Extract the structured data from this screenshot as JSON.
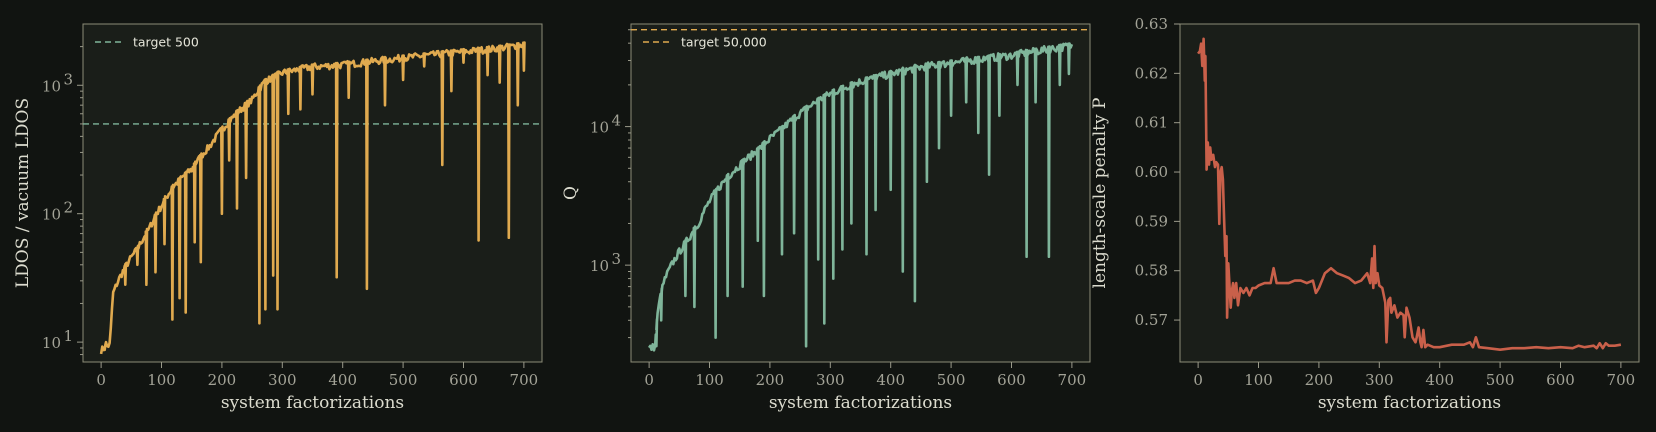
{
  "chart_data": [
    {
      "type": "line",
      "xlabel": "system factorizations",
      "ylabel": "LDOS / vacuum LDOS",
      "yscale": "log",
      "xlim": [
        -30,
        730
      ],
      "ylim": [
        7,
        3000
      ],
      "x_ticks": [
        "0",
        "100",
        "200",
        "300",
        "400",
        "500",
        "600",
        "700"
      ],
      "y_ticks": [
        {
          "base": "10",
          "exp": "1",
          "value": 10
        },
        {
          "base": "10",
          "exp": "2",
          "value": 100
        },
        {
          "base": "10",
          "exp": "3",
          "value": 1000
        }
      ],
      "color": "#e0aa4f",
      "legend": {
        "label": "target 500",
        "position": "upper-left"
      },
      "target": {
        "value": 500,
        "color": "#7fb59a"
      },
      "envelope": [
        [
          0,
          9
        ],
        [
          15,
          10
        ],
        [
          20,
          25
        ],
        [
          40,
          40
        ],
        [
          60,
          55
        ],
        [
          80,
          80
        ],
        [
          100,
          120
        ],
        [
          120,
          170
        ],
        [
          150,
          230
        ],
        [
          180,
          350
        ],
        [
          200,
          470
        ],
        [
          220,
          600
        ],
        [
          250,
          800
        ],
        [
          270,
          1100
        ],
        [
          300,
          1300
        ],
        [
          350,
          1450
        ],
        [
          400,
          1500
        ],
        [
          450,
          1600
        ],
        [
          500,
          1700
        ],
        [
          550,
          1800
        ],
        [
          600,
          1900
        ],
        [
          650,
          2000
        ],
        [
          700,
          2150
        ]
      ],
      "dips": [
        [
          8,
          10
        ],
        [
          40,
          28
        ],
        [
          60,
          40
        ],
        [
          75,
          28
        ],
        [
          90,
          35
        ],
        [
          105,
          58
        ],
        [
          118,
          15
        ],
        [
          130,
          22
        ],
        [
          140,
          17
        ],
        [
          155,
          60
        ],
        [
          165,
          42
        ],
        [
          200,
          100
        ],
        [
          212,
          260
        ],
        [
          225,
          110
        ],
        [
          240,
          190
        ],
        [
          262,
          14
        ],
        [
          272,
          18
        ],
        [
          285,
          33
        ],
        [
          292,
          18
        ],
        [
          310,
          600
        ],
        [
          330,
          650
        ],
        [
          350,
          850
        ],
        [
          390,
          32
        ],
        [
          410,
          800
        ],
        [
          440,
          26
        ],
        [
          470,
          700
        ],
        [
          500,
          1100
        ],
        [
          535,
          1400
        ],
        [
          565,
          240
        ],
        [
          580,
          900
        ],
        [
          600,
          1500
        ],
        [
          625,
          62
        ],
        [
          640,
          1200
        ],
        [
          660,
          1050
        ],
        [
          675,
          65
        ],
        [
          690,
          700
        ],
        [
          700,
          1300
        ]
      ]
    },
    {
      "type": "line",
      "xlabel": "system factorizations",
      "ylabel": "Q",
      "yscale": "log",
      "xlim": [
        -30,
        730
      ],
      "ylim": [
        200,
        55000
      ],
      "x_ticks": [
        "0",
        "100",
        "200",
        "300",
        "400",
        "500",
        "600",
        "700"
      ],
      "y_ticks": [
        {
          "base": "10",
          "exp": "3",
          "value": 1000
        },
        {
          "base": "10",
          "exp": "4",
          "value": 10000
        }
      ],
      "color": "#7fb59a",
      "legend": {
        "label": "target 50,000",
        "position": "upper-left"
      },
      "target": {
        "value": 50000,
        "color": "#e0aa4f"
      },
      "envelope": [
        [
          0,
          260
        ],
        [
          10,
          270
        ],
        [
          15,
          500
        ],
        [
          25,
          800
        ],
        [
          40,
          1100
        ],
        [
          60,
          1500
        ],
        [
          80,
          2000
        ],
        [
          100,
          3000
        ],
        [
          120,
          4000
        ],
        [
          150,
          5500
        ],
        [
          180,
          7000
        ],
        [
          200,
          8500
        ],
        [
          220,
          10000
        ],
        [
          250,
          13000
        ],
        [
          300,
          18000
        ],
        [
          350,
          22000
        ],
        [
          400,
          25000
        ],
        [
          450,
          28000
        ],
        [
          500,
          30000
        ],
        [
          550,
          32000
        ],
        [
          600,
          34000
        ],
        [
          650,
          37000
        ],
        [
          700,
          40000
        ]
      ],
      "dips": [
        [
          12,
          260
        ],
        [
          20,
          400
        ],
        [
          60,
          600
        ],
        [
          75,
          500
        ],
        [
          110,
          300
        ],
        [
          130,
          600
        ],
        [
          155,
          700
        ],
        [
          180,
          1500
        ],
        [
          190,
          600
        ],
        [
          220,
          1200
        ],
        [
          240,
          1700
        ],
        [
          260,
          260
        ],
        [
          280,
          1100
        ],
        [
          290,
          380
        ],
        [
          305,
          800
        ],
        [
          320,
          1300
        ],
        [
          335,
          2000
        ],
        [
          360,
          1200
        ],
        [
          375,
          2500
        ],
        [
          400,
          3500
        ],
        [
          420,
          900
        ],
        [
          440,
          550
        ],
        [
          460,
          4000
        ],
        [
          480,
          7000
        ],
        [
          500,
          12000
        ],
        [
          525,
          15000
        ],
        [
          545,
          9000
        ],
        [
          563,
          4500
        ],
        [
          580,
          12000
        ],
        [
          610,
          20000
        ],
        [
          625,
          1150
        ],
        [
          640,
          15000
        ],
        [
          662,
          1150
        ],
        [
          680,
          20000
        ],
        [
          695,
          24000
        ]
      ]
    },
    {
      "type": "line",
      "xlabel": "system factorizations",
      "ylabel": "length-scale penalty P",
      "yscale": "linear",
      "xlim": [
        -30,
        730
      ],
      "ylim": [
        0.5615,
        0.63
      ],
      "x_ticks": [
        "0",
        "100",
        "200",
        "300",
        "400",
        "500",
        "600",
        "700"
      ],
      "y_ticks": [
        {
          "label": "0.57",
          "value": 0.57
        },
        {
          "label": "0.58",
          "value": 0.58
        },
        {
          "label": "0.59",
          "value": 0.59
        },
        {
          "label": "0.60",
          "value": 0.6
        },
        {
          "label": "0.61",
          "value": 0.61
        },
        {
          "label": "0.62",
          "value": 0.62
        },
        {
          "label": "0.63",
          "value": 0.63
        }
      ],
      "color": "#c9604a",
      "points": [
        [
          0,
          0.624
        ],
        [
          3,
          0.6245
        ],
        [
          5,
          0.626
        ],
        [
          7,
          0.6215
        ],
        [
          9,
          0.627
        ],
        [
          11,
          0.6185
        ],
        [
          12,
          0.6235
        ],
        [
          14,
          0.6005
        ],
        [
          16,
          0.606
        ],
        [
          18,
          0.6015
        ],
        [
          20,
          0.605
        ],
        [
          22,
          0.6025
        ],
        [
          25,
          0.6035
        ],
        [
          28,
          0.601
        ],
        [
          30,
          0.602
        ],
        [
          33,
          0.6015
        ],
        [
          35,
          0.5895
        ],
        [
          37,
          0.6
        ],
        [
          39,
          0.601
        ],
        [
          41,
          0.5985
        ],
        [
          43,
          0.5905
        ],
        [
          45,
          0.583
        ],
        [
          47,
          0.587
        ],
        [
          48,
          0.5705
        ],
        [
          50,
          0.5815
        ],
        [
          52,
          0.577
        ],
        [
          54,
          0.5725
        ],
        [
          56,
          0.576
        ],
        [
          58,
          0.5775
        ],
        [
          60,
          0.5745
        ],
        [
          63,
          0.5775
        ],
        [
          66,
          0.573
        ],
        [
          70,
          0.5765
        ],
        [
          75,
          0.5755
        ],
        [
          80,
          0.5765
        ],
        [
          85,
          0.575
        ],
        [
          90,
          0.5765
        ],
        [
          95,
          0.5765
        ],
        [
          100,
          0.577
        ],
        [
          110,
          0.5775
        ],
        [
          120,
          0.5775
        ],
        [
          125,
          0.5805
        ],
        [
          130,
          0.5775
        ],
        [
          140,
          0.5775
        ],
        [
          150,
          0.5775
        ],
        [
          160,
          0.578
        ],
        [
          170,
          0.578
        ],
        [
          180,
          0.5775
        ],
        [
          190,
          0.578
        ],
        [
          195,
          0.5755
        ],
        [
          200,
          0.5765
        ],
        [
          210,
          0.5795
        ],
        [
          220,
          0.5805
        ],
        [
          230,
          0.5795
        ],
        [
          240,
          0.579
        ],
        [
          250,
          0.5785
        ],
        [
          260,
          0.5775
        ],
        [
          270,
          0.578
        ],
        [
          280,
          0.5795
        ],
        [
          285,
          0.5775
        ],
        [
          288,
          0.5825
        ],
        [
          290,
          0.5765
        ],
        [
          292,
          0.585
        ],
        [
          294,
          0.5775
        ],
        [
          297,
          0.5795
        ],
        [
          300,
          0.577
        ],
        [
          305,
          0.5765
        ],
        [
          310,
          0.5735
        ],
        [
          312,
          0.5655
        ],
        [
          315,
          0.574
        ],
        [
          318,
          0.5745
        ],
        [
          320,
          0.5715
        ],
        [
          325,
          0.573
        ],
        [
          330,
          0.5705
        ],
        [
          335,
          0.5715
        ],
        [
          340,
          0.571
        ],
        [
          342,
          0.5665
        ],
        [
          345,
          0.5725
        ],
        [
          350,
          0.5705
        ],
        [
          355,
          0.5665
        ],
        [
          360,
          0.5655
        ],
        [
          362,
          0.5665
        ],
        [
          365,
          0.5685
        ],
        [
          368,
          0.5655
        ],
        [
          370,
          0.5645
        ],
        [
          373,
          0.568
        ],
        [
          376,
          0.5645
        ],
        [
          380,
          0.565
        ],
        [
          390,
          0.5645
        ],
        [
          400,
          0.5645
        ],
        [
          420,
          0.565
        ],
        [
          440,
          0.565
        ],
        [
          450,
          0.5655
        ],
        [
          455,
          0.5645
        ],
        [
          460,
          0.5665
        ],
        [
          465,
          0.5645
        ],
        [
          480,
          0.5643
        ],
        [
          500,
          0.564
        ],
        [
          520,
          0.5643
        ],
        [
          540,
          0.5643
        ],
        [
          560,
          0.5645
        ],
        [
          580,
          0.5643
        ],
        [
          600,
          0.5645
        ],
        [
          620,
          0.5643
        ],
        [
          630,
          0.5648
        ],
        [
          640,
          0.5645
        ],
        [
          655,
          0.5648
        ],
        [
          660,
          0.5643
        ],
        [
          665,
          0.5653
        ],
        [
          670,
          0.5643
        ],
        [
          675,
          0.5653
        ],
        [
          680,
          0.5648
        ],
        [
          690,
          0.5648
        ],
        [
          700,
          0.565
        ]
      ]
    }
  ]
}
